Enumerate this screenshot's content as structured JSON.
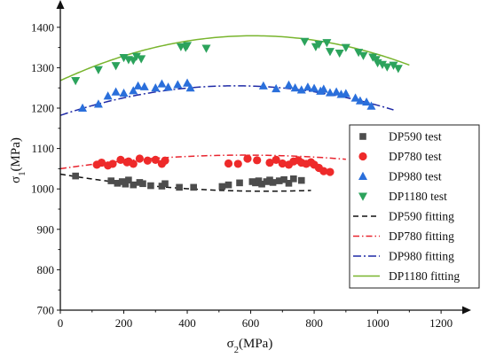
{
  "chart_data": {
    "type": "scatter",
    "title": "",
    "xlabel": "σ2(MPa)",
    "ylabel": "σ1(MPa)",
    "xlim": [
      0,
      1250
    ],
    "ylim": [
      700,
      1450
    ],
    "xticks": [
      0,
      200,
      400,
      600,
      800,
      1000,
      1200
    ],
    "yticks": [
      700,
      800,
      900,
      1000,
      1100,
      1200,
      1300,
      1400
    ],
    "grid": false,
    "legend_position": "right",
    "series": [
      {
        "name": "DP590 test",
        "kind": "scatter",
        "marker": "square",
        "color": "#4d4d4d",
        "points": [
          [
            48,
            1032
          ],
          [
            160,
            1020
          ],
          [
            180,
            1014
          ],
          [
            195,
            1018
          ],
          [
            205,
            1012
          ],
          [
            215,
            1022
          ],
          [
            230,
            1010
          ],
          [
            250,
            1016
          ],
          [
            260,
            1013
          ],
          [
            285,
            1008
          ],
          [
            320,
            1007
          ],
          [
            330,
            1013
          ],
          [
            375,
            1004
          ],
          [
            420,
            1004
          ],
          [
            510,
            1006
          ],
          [
            530,
            1010
          ],
          [
            565,
            1015
          ],
          [
            605,
            1018
          ],
          [
            615,
            1015
          ],
          [
            625,
            1020
          ],
          [
            635,
            1012
          ],
          [
            650,
            1018
          ],
          [
            660,
            1022
          ],
          [
            670,
            1016
          ],
          [
            690,
            1020
          ],
          [
            705,
            1023
          ],
          [
            720,
            1014
          ],
          [
            735,
            1025
          ],
          [
            760,
            1021
          ]
        ]
      },
      {
        "name": "DP780 test",
        "kind": "scatter",
        "marker": "circle",
        "color": "#ee2a2a",
        "points": [
          [
            115,
            1060
          ],
          [
            130,
            1065
          ],
          [
            150,
            1058
          ],
          [
            165,
            1062
          ],
          [
            190,
            1072
          ],
          [
            210,
            1066
          ],
          [
            215,
            1068
          ],
          [
            230,
            1062
          ],
          [
            250,
            1075
          ],
          [
            275,
            1070
          ],
          [
            300,
            1072
          ],
          [
            320,
            1062
          ],
          [
            330,
            1070
          ],
          [
            530,
            1063
          ],
          [
            560,
            1062
          ],
          [
            590,
            1075
          ],
          [
            620,
            1071
          ],
          [
            660,
            1065
          ],
          [
            680,
            1072
          ],
          [
            700,
            1063
          ],
          [
            720,
            1060
          ],
          [
            735,
            1068
          ],
          [
            750,
            1071
          ],
          [
            760,
            1065
          ],
          [
            775,
            1062
          ],
          [
            790,
            1066
          ],
          [
            800,
            1060
          ],
          [
            815,
            1052
          ],
          [
            830,
            1044
          ],
          [
            850,
            1042
          ]
        ]
      },
      {
        "name": "DP980 test",
        "kind": "scatter",
        "marker": "triangle-up",
        "color": "#2a6fdb",
        "points": [
          [
            70,
            1200
          ],
          [
            120,
            1210
          ],
          [
            150,
            1230
          ],
          [
            175,
            1240
          ],
          [
            200,
            1237
          ],
          [
            230,
            1243
          ],
          [
            245,
            1255
          ],
          [
            265,
            1253
          ],
          [
            300,
            1250
          ],
          [
            320,
            1260
          ],
          [
            340,
            1252
          ],
          [
            370,
            1258
          ],
          [
            400,
            1262
          ],
          [
            410,
            1250
          ],
          [
            640,
            1255
          ],
          [
            680,
            1248
          ],
          [
            720,
            1257
          ],
          [
            740,
            1250
          ],
          [
            760,
            1245
          ],
          [
            780,
            1252
          ],
          [
            800,
            1249
          ],
          [
            820,
            1242
          ],
          [
            830,
            1247
          ],
          [
            850,
            1238
          ],
          [
            870,
            1240
          ],
          [
            885,
            1234
          ],
          [
            900,
            1236
          ],
          [
            930,
            1225
          ],
          [
            945,
            1218
          ],
          [
            965,
            1215
          ],
          [
            980,
            1205
          ]
        ]
      },
      {
        "name": "DP1180 test",
        "kind": "scatter",
        "marker": "triangle-down",
        "color": "#2ca35c",
        "points": [
          [
            48,
            1268
          ],
          [
            120,
            1295
          ],
          [
            175,
            1305
          ],
          [
            200,
            1325
          ],
          [
            215,
            1320
          ],
          [
            230,
            1318
          ],
          [
            240,
            1328
          ],
          [
            255,
            1322
          ],
          [
            380,
            1352
          ],
          [
            395,
            1350
          ],
          [
            400,
            1355
          ],
          [
            460,
            1348
          ],
          [
            770,
            1365
          ],
          [
            805,
            1352
          ],
          [
            815,
            1358
          ],
          [
            840,
            1362
          ],
          [
            850,
            1340
          ],
          [
            880,
            1336
          ],
          [
            900,
            1350
          ],
          [
            940,
            1338
          ],
          [
            955,
            1330
          ],
          [
            985,
            1326
          ],
          [
            995,
            1320
          ],
          [
            1000,
            1312
          ],
          [
            1015,
            1308
          ],
          [
            1030,
            1302
          ],
          [
            1050,
            1306
          ],
          [
            1065,
            1298
          ]
        ]
      },
      {
        "name": "DP590 fitting",
        "kind": "line",
        "dash": "6,4",
        "color": "#111111",
        "x_range": [
          0,
          790
        ],
        "coef": [
          1036.59,
          -0.13,
          0.0001
        ]
      },
      {
        "name": "DP780 fitting",
        "kind": "line",
        "dash": "7,3,1.5,3",
        "color": "#e8242e",
        "x_range": [
          0,
          900
        ],
        "coef": [
          1050,
          0.116,
          -0.0001
        ]
      },
      {
        "name": "DP980 fitting",
        "kind": "line",
        "dash": "9,3,2,3",
        "color": "#1f2aa6",
        "x_range": [
          0,
          1050
        ],
        "coef": [
          1182,
          0.265,
          -0.00024
        ]
      },
      {
        "name": "DP1180 fitting",
        "kind": "line",
        "dash": "",
        "color": "#79b52e",
        "x_range": [
          0,
          1100
        ],
        "coef": [
          1268,
          0.365,
          -0.0003
        ]
      }
    ]
  }
}
